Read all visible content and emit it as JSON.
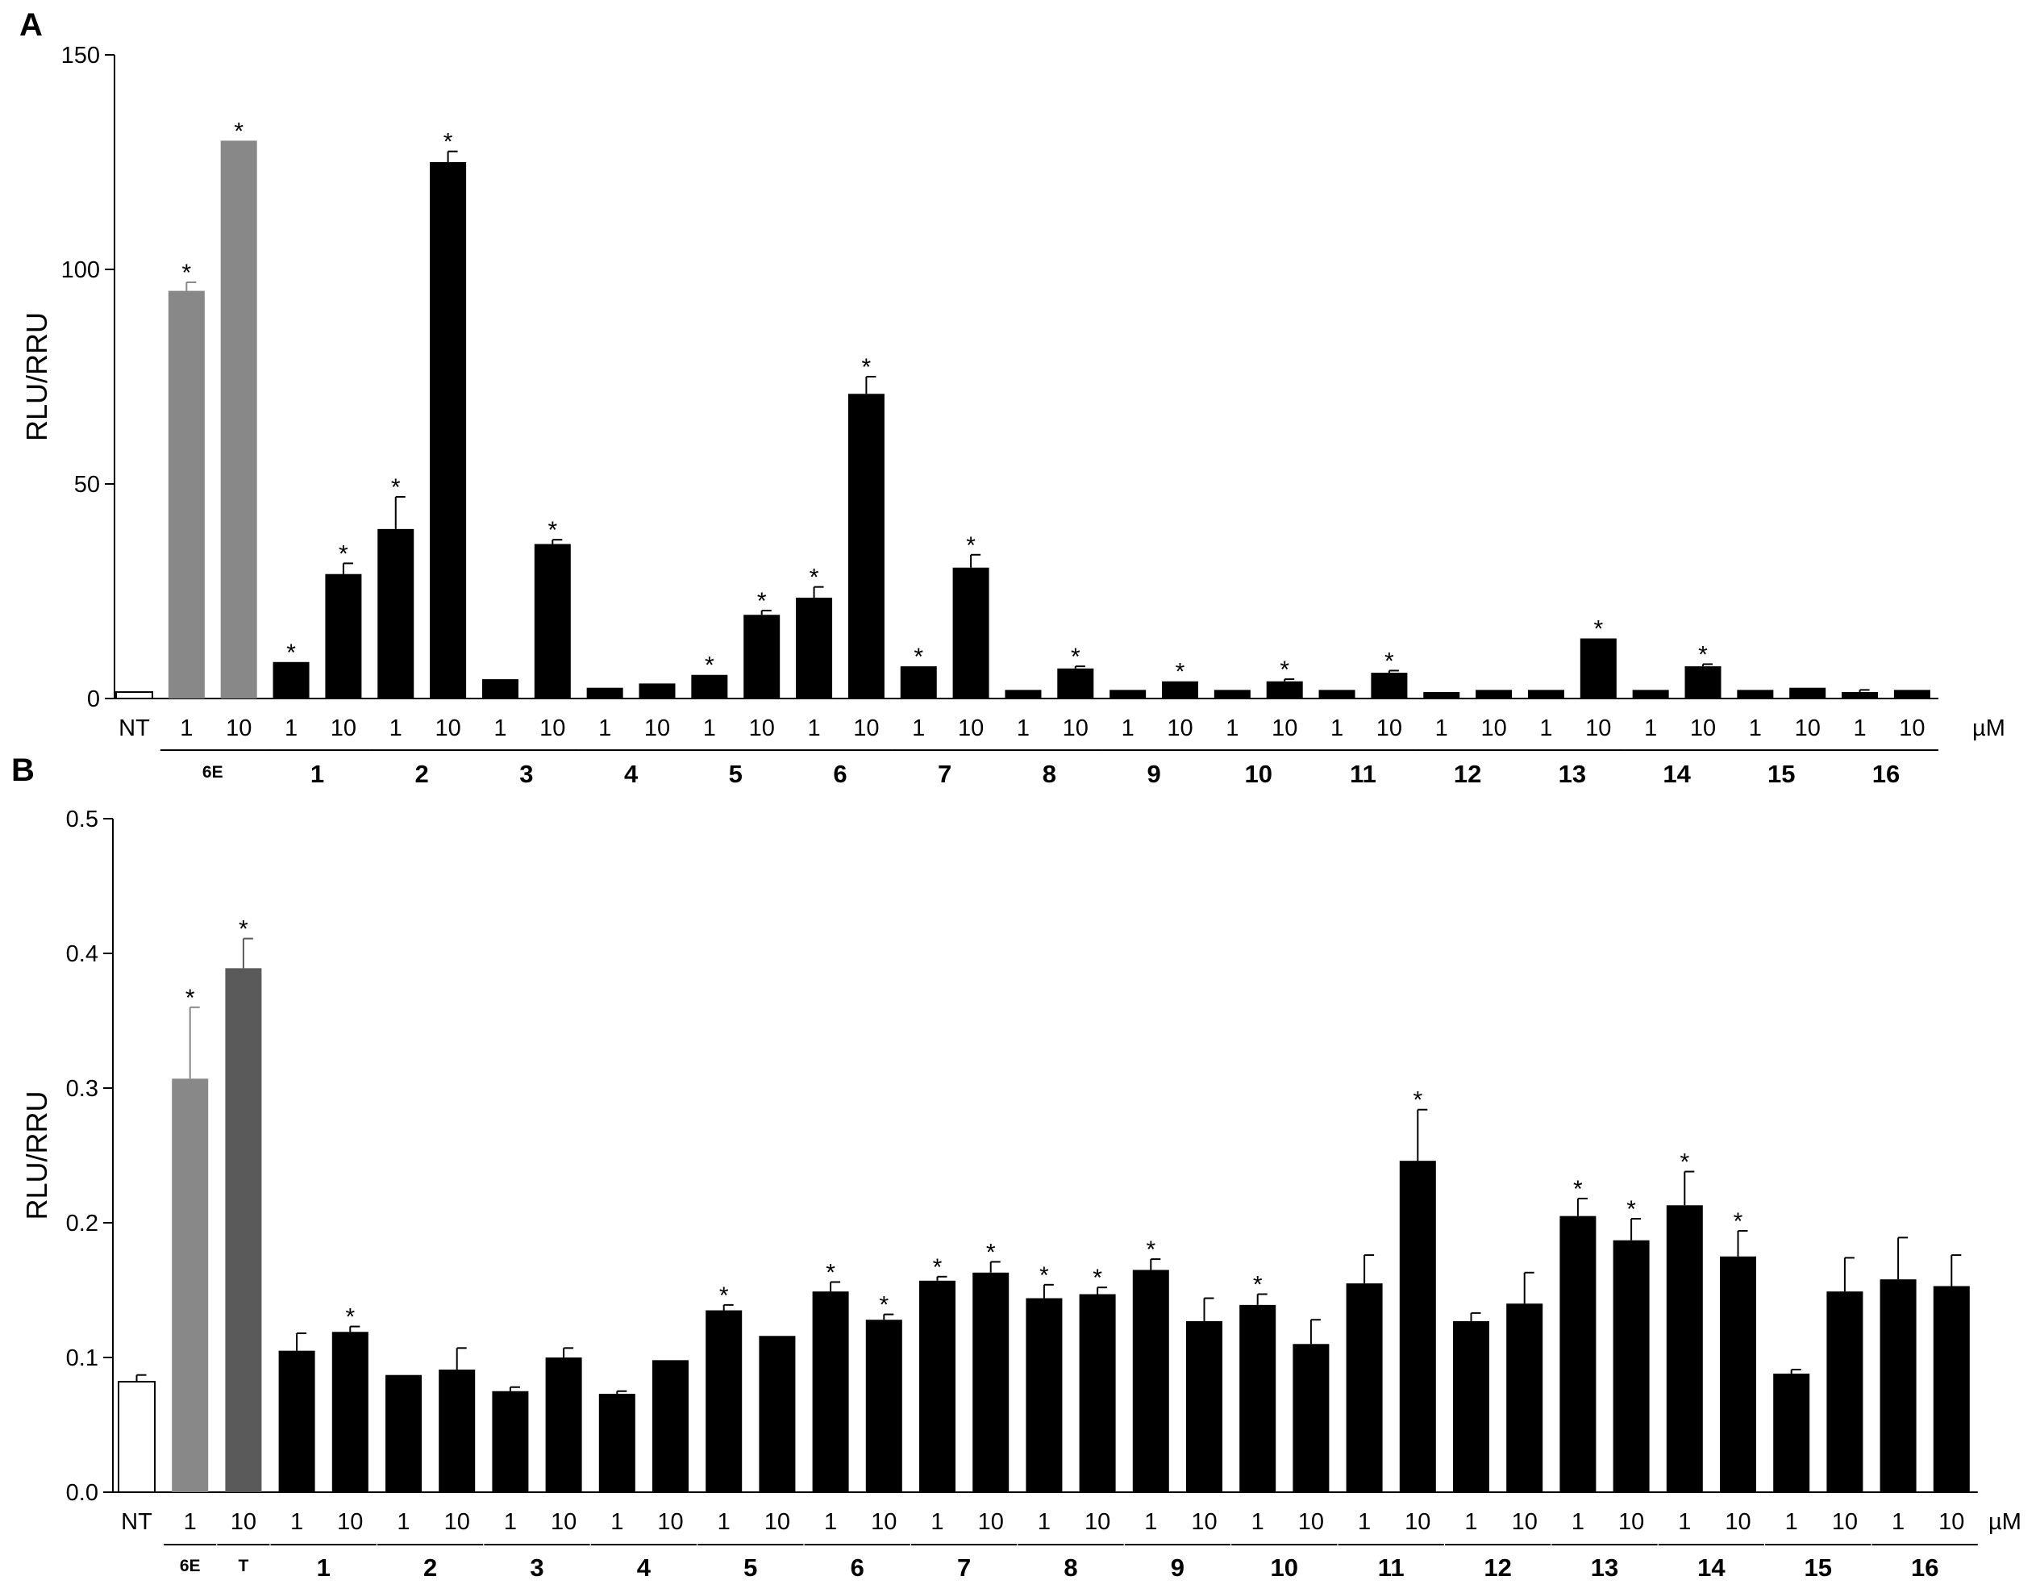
{
  "chart_data": [
    {
      "type": "bar",
      "panel_label": "A",
      "ylabel": "RLU/RRU",
      "ylim": [
        0,
        150
      ],
      "yticks": [
        "0",
        "50",
        "100",
        "150"
      ],
      "unit_label": "µM",
      "bars": [
        {
          "group": "NT",
          "conc": "NT",
          "value": 1.5,
          "err": 0,
          "star": false,
          "color": "#ffffff"
        },
        {
          "group": "6E",
          "conc": "1",
          "value": 95,
          "err": 2,
          "star": true,
          "color": "#888888"
        },
        {
          "group": "6E",
          "conc": "10",
          "value": 130,
          "err": 0,
          "star": true,
          "color": "#888888"
        },
        {
          "group": "1",
          "conc": "1",
          "value": 8.5,
          "err": 0,
          "star": true,
          "color": "#000000"
        },
        {
          "group": "1",
          "conc": "10",
          "value": 29,
          "err": 2.5,
          "star": true,
          "color": "#000000"
        },
        {
          "group": "2",
          "conc": "1",
          "value": 39.5,
          "err": 7.5,
          "star": true,
          "color": "#000000"
        },
        {
          "group": "2",
          "conc": "10",
          "value": 125,
          "err": 2.5,
          "star": true,
          "color": "#000000"
        },
        {
          "group": "3",
          "conc": "1",
          "value": 4.5,
          "err": 0,
          "star": false,
          "color": "#000000"
        },
        {
          "group": "3",
          "conc": "10",
          "value": 36,
          "err": 1,
          "star": true,
          "color": "#000000"
        },
        {
          "group": "4",
          "conc": "1",
          "value": 2.5,
          "err": 0,
          "star": false,
          "color": "#000000"
        },
        {
          "group": "4",
          "conc": "10",
          "value": 3.5,
          "err": 0,
          "star": false,
          "color": "#000000"
        },
        {
          "group": "5",
          "conc": "1",
          "value": 5.5,
          "err": 0,
          "star": true,
          "color": "#000000"
        },
        {
          "group": "5",
          "conc": "10",
          "value": 19.5,
          "err": 1,
          "star": true,
          "color": "#000000"
        },
        {
          "group": "6",
          "conc": "1",
          "value": 23.5,
          "err": 2.5,
          "star": true,
          "color": "#000000"
        },
        {
          "group": "6",
          "conc": "10",
          "value": 71,
          "err": 4,
          "star": true,
          "color": "#000000"
        },
        {
          "group": "7",
          "conc": "1",
          "value": 7.5,
          "err": 0,
          "star": true,
          "color": "#000000"
        },
        {
          "group": "7",
          "conc": "10",
          "value": 30.5,
          "err": 3,
          "star": true,
          "color": "#000000"
        },
        {
          "group": "8",
          "conc": "1",
          "value": 2,
          "err": 0,
          "star": false,
          "color": "#000000"
        },
        {
          "group": "8",
          "conc": "10",
          "value": 7,
          "err": 0.5,
          "star": true,
          "color": "#000000"
        },
        {
          "group": "9",
          "conc": "1",
          "value": 2,
          "err": 0,
          "star": false,
          "color": "#000000"
        },
        {
          "group": "9",
          "conc": "10",
          "value": 4,
          "err": 0,
          "star": true,
          "color": "#000000"
        },
        {
          "group": "10",
          "conc": "1",
          "value": 2,
          "err": 0,
          "star": false,
          "color": "#000000"
        },
        {
          "group": "10",
          "conc": "10",
          "value": 4,
          "err": 0.5,
          "star": true,
          "color": "#000000"
        },
        {
          "group": "11",
          "conc": "1",
          "value": 2,
          "err": 0,
          "star": false,
          "color": "#000000"
        },
        {
          "group": "11",
          "conc": "10",
          "value": 6,
          "err": 0.5,
          "star": true,
          "color": "#000000"
        },
        {
          "group": "12",
          "conc": "1",
          "value": 1.5,
          "err": 0,
          "star": false,
          "color": "#000000"
        },
        {
          "group": "12",
          "conc": "10",
          "value": 2,
          "err": 0,
          "star": false,
          "color": "#000000"
        },
        {
          "group": "13",
          "conc": "1",
          "value": 2,
          "err": 0,
          "star": false,
          "color": "#000000"
        },
        {
          "group": "13",
          "conc": "10",
          "value": 14,
          "err": 0,
          "star": true,
          "color": "#000000"
        },
        {
          "group": "14",
          "conc": "1",
          "value": 2,
          "err": 0,
          "star": false,
          "color": "#000000"
        },
        {
          "group": "14",
          "conc": "10",
          "value": 7.5,
          "err": 0.5,
          "star": true,
          "color": "#000000"
        },
        {
          "group": "15",
          "conc": "1",
          "value": 2,
          "err": 0,
          "star": false,
          "color": "#000000"
        },
        {
          "group": "15",
          "conc": "10",
          "value": 2.5,
          "err": 0,
          "star": false,
          "color": "#000000"
        },
        {
          "group": "16",
          "conc": "1",
          "value": 1.5,
          "err": 0.5,
          "star": false,
          "color": "#000000"
        },
        {
          "group": "16",
          "conc": "10",
          "value": 2,
          "err": 0,
          "star": false,
          "color": "#000000"
        }
      ],
      "groups": [
        {
          "label": "6E",
          "first": 1,
          "last": 2
        },
        {
          "label": "1",
          "first": 3,
          "last": 4
        },
        {
          "label": "2",
          "first": 5,
          "last": 6
        },
        {
          "label": "3",
          "first": 7,
          "last": 8
        },
        {
          "label": "4",
          "first": 9,
          "last": 10
        },
        {
          "label": "5",
          "first": 11,
          "last": 12
        },
        {
          "label": "6",
          "first": 13,
          "last": 14
        },
        {
          "label": "7",
          "first": 15,
          "last": 16
        },
        {
          "label": "8",
          "first": 17,
          "last": 18
        },
        {
          "label": "9",
          "first": 19,
          "last": 20
        },
        {
          "label": "10",
          "first": 21,
          "last": 22
        },
        {
          "label": "11",
          "first": 23,
          "last": 24
        },
        {
          "label": "12",
          "first": 25,
          "last": 26
        },
        {
          "label": "13",
          "first": 27,
          "last": 28
        },
        {
          "label": "14",
          "first": 29,
          "last": 30
        },
        {
          "label": "15",
          "first": 31,
          "last": 32
        },
        {
          "label": "16",
          "first": 33,
          "last": 34
        }
      ]
    },
    {
      "type": "bar",
      "panel_label": "B",
      "ylabel": "RLU/RRU",
      "ylim": [
        0,
        0.5
      ],
      "yticks": [
        "0.0",
        "0.1",
        "0.2",
        "0.3",
        "0.4",
        "0.5"
      ],
      "unit_label": "µM",
      "bars": [
        {
          "group": "NT",
          "conc": "NT",
          "value": 0.082,
          "err": 0.005,
          "star": false,
          "color": "#ffffff"
        },
        {
          "group": "6E",
          "conc": "1",
          "value": 0.307,
          "err": 0.053,
          "star": true,
          "color": "#888888"
        },
        {
          "group": "T",
          "conc": "10",
          "value": 0.389,
          "err": 0.022,
          "star": true,
          "color": "#5a5a5a"
        },
        {
          "group": "1",
          "conc": "1",
          "value": 0.105,
          "err": 0.013,
          "star": false,
          "color": "#000000"
        },
        {
          "group": "1",
          "conc": "10",
          "value": 0.119,
          "err": 0.004,
          "star": true,
          "color": "#000000"
        },
        {
          "group": "2",
          "conc": "1",
          "value": 0.087,
          "err": 0,
          "star": false,
          "color": "#000000"
        },
        {
          "group": "2",
          "conc": "10",
          "value": 0.091,
          "err": 0.016,
          "star": false,
          "color": "#000000"
        },
        {
          "group": "3",
          "conc": "1",
          "value": 0.075,
          "err": 0.003,
          "star": false,
          "color": "#000000"
        },
        {
          "group": "3",
          "conc": "10",
          "value": 0.1,
          "err": 0.007,
          "star": false,
          "color": "#000000"
        },
        {
          "group": "4",
          "conc": "1",
          "value": 0.073,
          "err": 0.002,
          "star": false,
          "color": "#000000"
        },
        {
          "group": "4",
          "conc": "10",
          "value": 0.098,
          "err": 0,
          "star": false,
          "color": "#000000"
        },
        {
          "group": "5",
          "conc": "1",
          "value": 0.135,
          "err": 0.004,
          "star": true,
          "color": "#000000"
        },
        {
          "group": "5",
          "conc": "10",
          "value": 0.116,
          "err": 0,
          "star": false,
          "color": "#000000"
        },
        {
          "group": "6",
          "conc": "1",
          "value": 0.149,
          "err": 0.007,
          "star": true,
          "color": "#000000"
        },
        {
          "group": "6",
          "conc": "10",
          "value": 0.128,
          "err": 0.004,
          "star": true,
          "color": "#000000"
        },
        {
          "group": "7",
          "conc": "1",
          "value": 0.157,
          "err": 0.003,
          "star": true,
          "color": "#000000"
        },
        {
          "group": "7",
          "conc": "10",
          "value": 0.163,
          "err": 0.008,
          "star": true,
          "color": "#000000"
        },
        {
          "group": "8",
          "conc": "1",
          "value": 0.144,
          "err": 0.01,
          "star": true,
          "color": "#000000"
        },
        {
          "group": "8",
          "conc": "10",
          "value": 0.147,
          "err": 0.005,
          "star": true,
          "color": "#000000"
        },
        {
          "group": "9",
          "conc": "1",
          "value": 0.165,
          "err": 0.008,
          "star": true,
          "color": "#000000"
        },
        {
          "group": "9",
          "conc": "10",
          "value": 0.127,
          "err": 0.017,
          "star": false,
          "color": "#000000"
        },
        {
          "group": "10",
          "conc": "1",
          "value": 0.139,
          "err": 0.008,
          "star": true,
          "color": "#000000"
        },
        {
          "group": "10",
          "conc": "10",
          "value": 0.11,
          "err": 0.018,
          "star": false,
          "color": "#000000"
        },
        {
          "group": "11",
          "conc": "1",
          "value": 0.155,
          "err": 0.021,
          "star": false,
          "color": "#000000"
        },
        {
          "group": "11",
          "conc": "10",
          "value": 0.246,
          "err": 0.038,
          "star": true,
          "color": "#000000"
        },
        {
          "group": "12",
          "conc": "1",
          "value": 0.127,
          "err": 0.006,
          "star": false,
          "color": "#000000"
        },
        {
          "group": "12",
          "conc": "10",
          "value": 0.14,
          "err": 0.023,
          "star": false,
          "color": "#000000"
        },
        {
          "group": "13",
          "conc": "1",
          "value": 0.205,
          "err": 0.013,
          "star": true,
          "color": "#000000"
        },
        {
          "group": "13",
          "conc": "10",
          "value": 0.187,
          "err": 0.016,
          "star": true,
          "color": "#000000"
        },
        {
          "group": "14",
          "conc": "1",
          "value": 0.213,
          "err": 0.025,
          "star": true,
          "color": "#000000"
        },
        {
          "group": "14",
          "conc": "10",
          "value": 0.175,
          "err": 0.019,
          "star": true,
          "color": "#000000"
        },
        {
          "group": "15",
          "conc": "1",
          "value": 0.088,
          "err": 0.003,
          "star": false,
          "color": "#000000"
        },
        {
          "group": "15",
          "conc": "10",
          "value": 0.149,
          "err": 0.025,
          "star": false,
          "color": "#000000"
        },
        {
          "group": "16",
          "conc": "1",
          "value": 0.158,
          "err": 0.031,
          "star": false,
          "color": "#000000"
        },
        {
          "group": "16",
          "conc": "10",
          "value": 0.153,
          "err": 0.023,
          "star": false,
          "color": "#000000"
        }
      ],
      "groups": [
        {
          "label": "6E",
          "first": 1,
          "last": 1
        },
        {
          "label": "T",
          "first": 2,
          "last": 2
        },
        {
          "label": "1",
          "first": 3,
          "last": 4
        },
        {
          "label": "2",
          "first": 5,
          "last": 6
        },
        {
          "label": "3",
          "first": 7,
          "last": 8
        },
        {
          "label": "4",
          "first": 9,
          "last": 10
        },
        {
          "label": "5",
          "first": 11,
          "last": 12
        },
        {
          "label": "6",
          "first": 13,
          "last": 14
        },
        {
          "label": "7",
          "first": 15,
          "last": 16
        },
        {
          "label": "8",
          "first": 17,
          "last": 18
        },
        {
          "label": "9",
          "first": 19,
          "last": 20
        },
        {
          "label": "10",
          "first": 21,
          "last": 22
        },
        {
          "label": "11",
          "first": 23,
          "last": 24
        },
        {
          "label": "12",
          "first": 25,
          "last": 26
        },
        {
          "label": "13",
          "first": 27,
          "last": 28
        },
        {
          "label": "14",
          "first": 29,
          "last": 30
        },
        {
          "label": "15",
          "first": 31,
          "last": 32
        },
        {
          "label": "16",
          "first": 33,
          "last": 34
        }
      ]
    }
  ]
}
